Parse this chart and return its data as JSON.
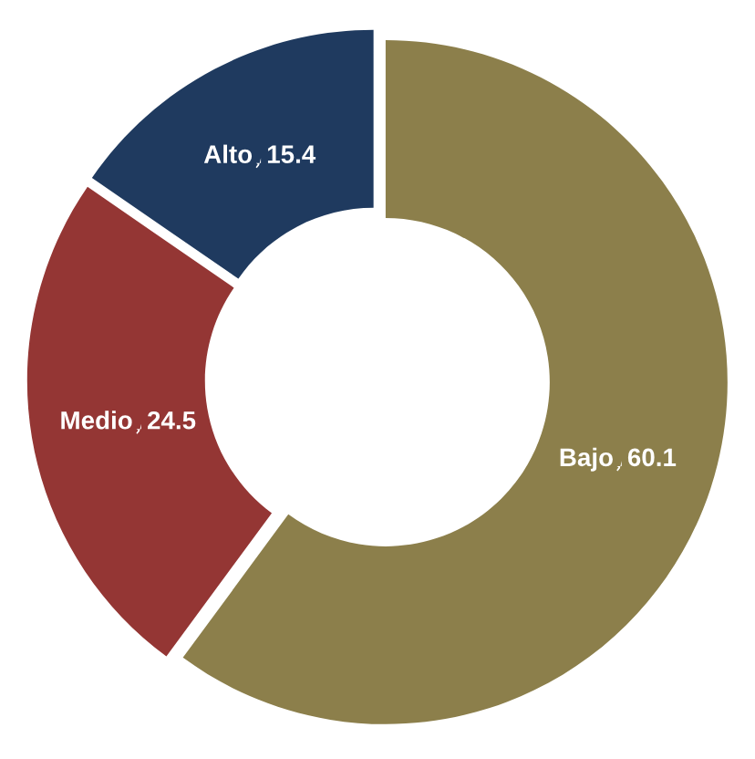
{
  "chart_data": {
    "type": "donut",
    "categories": [
      "Bajo",
      "Medio",
      "Alto"
    ],
    "values": [
      60.1,
      24.5,
      15.4
    ],
    "colors": [
      "#8c7f4b",
      "#943634",
      "#1f3a5f"
    ],
    "data_labels": true,
    "legend": false
  }
}
